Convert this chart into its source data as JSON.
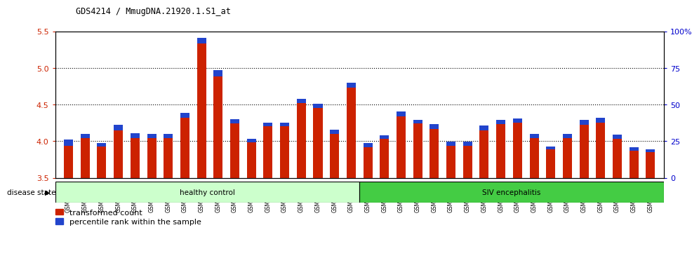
{
  "title": "GDS4214 / MmugDNA.21920.1.S1_at",
  "samples": [
    "GSM347802",
    "GSM347803",
    "GSM347810",
    "GSM347811",
    "GSM347812",
    "GSM347813",
    "GSM347814",
    "GSM347815",
    "GSM347816",
    "GSM347817",
    "GSM347818",
    "GSM347820",
    "GSM347821",
    "GSM347822",
    "GSM347825",
    "GSM347826",
    "GSM347827",
    "GSM347828",
    "GSM347800",
    "GSM347801",
    "GSM347804",
    "GSM347805",
    "GSM347806",
    "GSM347807",
    "GSM347808",
    "GSM347809",
    "GSM347823",
    "GSM347824",
    "GSM347829",
    "GSM347830",
    "GSM347831",
    "GSM347832",
    "GSM347833",
    "GSM347834",
    "GSM347835",
    "GSM347836"
  ],
  "red_values": [
    3.94,
    4.04,
    3.93,
    4.15,
    4.04,
    4.04,
    4.04,
    4.32,
    5.33,
    4.88,
    4.24,
    3.98,
    4.2,
    4.2,
    4.52,
    4.45,
    4.1,
    4.73,
    3.92,
    4.03,
    4.34,
    4.24,
    4.17,
    3.94,
    3.94,
    4.15,
    4.23,
    4.25,
    4.04,
    3.89,
    4.04,
    4.22,
    4.25,
    4.03,
    3.87,
    3.85
  ],
  "blue_values": [
    0.08,
    0.06,
    0.04,
    0.07,
    0.07,
    0.06,
    0.06,
    0.07,
    0.08,
    0.09,
    0.06,
    0.05,
    0.05,
    0.05,
    0.06,
    0.06,
    0.06,
    0.07,
    0.05,
    0.05,
    0.07,
    0.05,
    0.06,
    0.05,
    0.05,
    0.06,
    0.06,
    0.06,
    0.06,
    0.04,
    0.06,
    0.07,
    0.07,
    0.06,
    0.05,
    0.04
  ],
  "healthy_count": 18,
  "healthy_label": "healthy control",
  "siv_label": "SIV encephalitis",
  "disease_state_label": "disease state",
  "ylim_left": [
    3.5,
    5.5
  ],
  "ylim_right": [
    0,
    100
  ],
  "yticks_left": [
    3.5,
    4.0,
    4.5,
    5.0,
    5.5
  ],
  "yticks_right": [
    0,
    25,
    50,
    75,
    100
  ],
  "yticklabels_right": [
    "0",
    "25",
    "50",
    "75",
    "100%"
  ],
  "bar_color_red": "#cc2200",
  "bar_color_blue": "#2244cc",
  "healthy_bg": "#ccffcc",
  "siv_bg": "#44cc44",
  "axis_bg": "#ffffff",
  "legend_red_label": "transformed count",
  "legend_blue_label": "percentile rank within the sample",
  "bar_width": 0.55,
  "base_value": 3.5,
  "grid_yticks": [
    4.0,
    4.5,
    5.0
  ]
}
